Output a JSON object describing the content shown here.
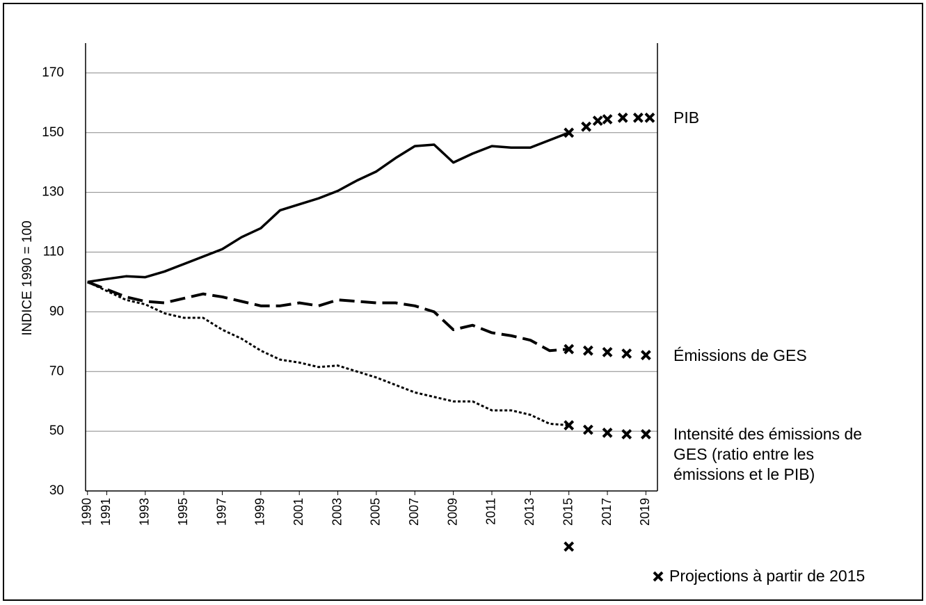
{
  "chart_data": {
    "type": "line",
    "y_label": "INDICE 1990 = 100",
    "ylim": [
      30,
      180
    ],
    "yticks": [
      30,
      50,
      70,
      90,
      110,
      130,
      150,
      170
    ],
    "xlim": [
      1989.9,
      2019.6
    ],
    "xticks": [
      1990,
      1991,
      1993,
      1995,
      1997,
      1999,
      2001,
      2003,
      2005,
      2007,
      2009,
      2011,
      2013,
      2015,
      2017,
      2019
    ],
    "grid": true,
    "x": [
      1990,
      1991,
      1992,
      1993,
      1994,
      1995,
      1996,
      1997,
      1998,
      1999,
      2000,
      2001,
      2002,
      2003,
      2004,
      2005,
      2006,
      2007,
      2008,
      2009,
      2010,
      2011,
      2012,
      2013,
      2014,
      2015
    ],
    "series": [
      {
        "name": "PIB",
        "color": "#000000",
        "style": "solid",
        "values": [
          100,
          101,
          101.9,
          101.6,
          103.5,
          106,
          108.5,
          111,
          115,
          118,
          124,
          126,
          128,
          130.5,
          134,
          137,
          141.5,
          145.5,
          146,
          140,
          143,
          145.5,
          145,
          145,
          147.5,
          150
        ],
        "projection": {
          "x": [
            2015,
            2015.9,
            2016.5,
            2017,
            2017.8,
            2018.6,
            2019.2
          ],
          "values": [
            150,
            152,
            154,
            154.5,
            155,
            155,
            155
          ]
        }
      },
      {
        "name": "Émissions de GES",
        "color": "#000000",
        "style": "dashed",
        "values": [
          100,
          97.5,
          95,
          93.5,
          93,
          94.5,
          96,
          95,
          93.5,
          92,
          92,
          93,
          92,
          94,
          93.5,
          93,
          93,
          92,
          90,
          84,
          85.5,
          83,
          82,
          80.5,
          77,
          77.5
        ],
        "projection": {
          "x": [
            2015,
            2016,
            2017,
            2018,
            2019
          ],
          "values": [
            77.5,
            77,
            76.5,
            76,
            75.5
          ]
        }
      },
      {
        "name": "Intensité des émissions de GES (ratio entre les émissions et le PIB)",
        "color": "#000000",
        "style": "dotted",
        "values": [
          100,
          97,
          94,
          92.5,
          89.5,
          88,
          88,
          84,
          81,
          77,
          74,
          73,
          71.5,
          72,
          70,
          68,
          65.5,
          63,
          61.5,
          60,
          60,
          57,
          57,
          55.5,
          52.5,
          52
        ],
        "projection": {
          "x": [
            2015,
            2016,
            2017,
            2018,
            2019
          ],
          "values": [
            52,
            50.5,
            49.5,
            49,
            49
          ]
        }
      }
    ],
    "projection_label": "Projections à partir de 2015"
  }
}
